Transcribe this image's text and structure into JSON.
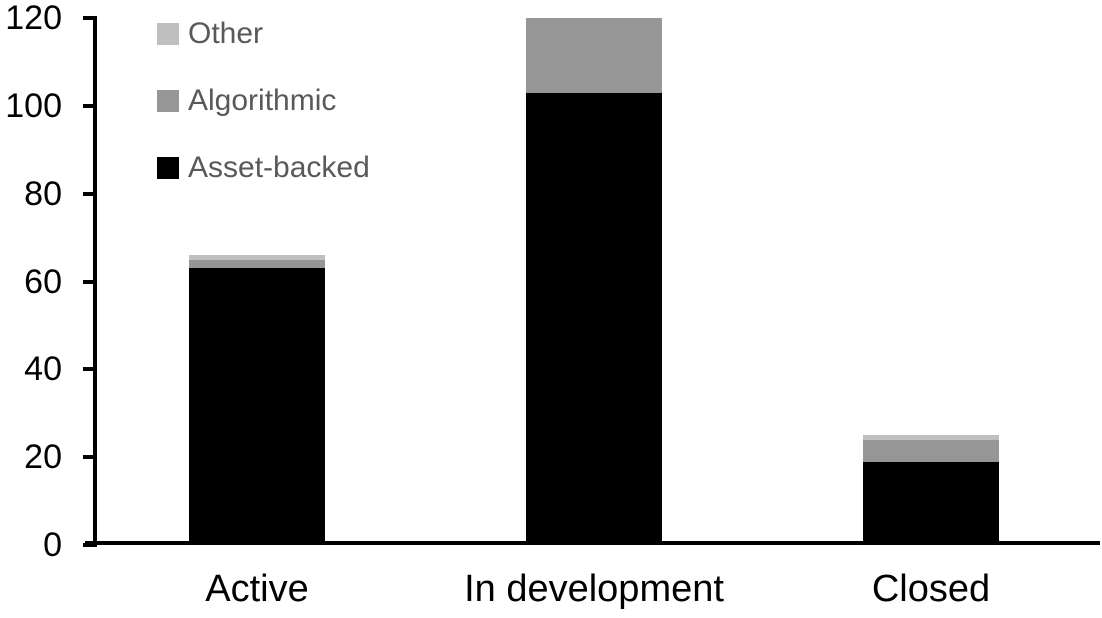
{
  "chart_data": {
    "type": "bar",
    "stacked": true,
    "title": "",
    "xlabel": "",
    "ylabel": "",
    "categories": [
      "Active",
      "In development",
      "Closed"
    ],
    "series": [
      {
        "name": "Other",
        "color": "#bfbfbf",
        "values": [
          1,
          0,
          1
        ]
      },
      {
        "name": "Algorithmic",
        "color": "#969696",
        "values": [
          2,
          17,
          5
        ]
      },
      {
        "name": "Asset-backed",
        "color": "#000000",
        "values": [
          63,
          103,
          19
        ]
      }
    ],
    "stack_order_bottom_to_top": [
      "Asset-backed",
      "Algorithmic",
      "Other"
    ],
    "totals": [
      66,
      120,
      25
    ],
    "yticks": [
      0,
      20,
      40,
      60,
      80,
      100,
      120
    ],
    "ylim": [
      0,
      120
    ],
    "grid": false,
    "legend_position": "top-left-inside",
    "axis_color": "#000000",
    "legend_text_color": "#595959"
  }
}
